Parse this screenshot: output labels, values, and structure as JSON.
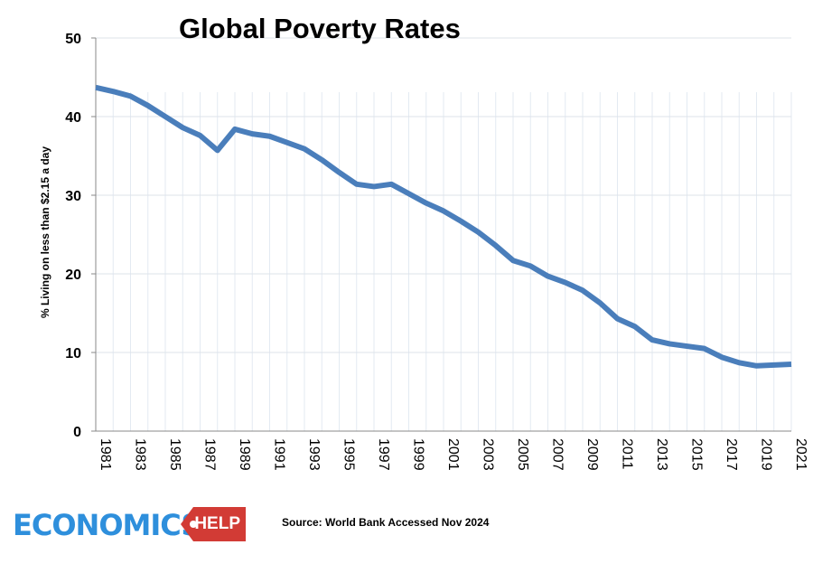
{
  "chart_data": {
    "type": "line",
    "title": "Global Poverty Rates",
    "xlabel": "",
    "ylabel": "% Living on less than $2.15 a day",
    "ylim": [
      0,
      50
    ],
    "yticks": [
      0,
      10,
      20,
      30,
      40,
      50
    ],
    "xlim": [
      1981,
      2021
    ],
    "xtick_labels": [
      "1981",
      "1983",
      "1985",
      "1987",
      "1989",
      "1991",
      "1993",
      "1995",
      "1997",
      "1999",
      "2001",
      "2003",
      "2005",
      "2007",
      "2009",
      "2011",
      "2013",
      "2015",
      "2017",
      "2019",
      "2021"
    ],
    "grid": true,
    "x": [
      1981,
      1982,
      1983,
      1984,
      1985,
      1986,
      1987,
      1988,
      1989,
      1990,
      1991,
      1992,
      1993,
      1994,
      1995,
      1996,
      1997,
      1998,
      1999,
      2000,
      2001,
      2002,
      2003,
      2004,
      2005,
      2006,
      2007,
      2008,
      2009,
      2010,
      2011,
      2012,
      2013,
      2014,
      2015,
      2016,
      2017,
      2018,
      2019,
      2020,
      2021
    ],
    "values": [
      43.7,
      43.2,
      42.6,
      41.4,
      40.0,
      38.6,
      37.6,
      35.7,
      38.4,
      37.8,
      37.5,
      36.7,
      35.9,
      34.5,
      32.9,
      31.4,
      31.1,
      31.4,
      30.2,
      29.0,
      28.0,
      26.7,
      25.3,
      23.6,
      21.7,
      21.0,
      19.7,
      18.9,
      17.9,
      16.3,
      14.3,
      13.3,
      11.6,
      11.1,
      10.8,
      10.5,
      9.4,
      8.7,
      8.3,
      8.4,
      8.5
    ],
    "line_color": "#4a7ebb"
  },
  "source": "Source: World Bank Accessed Nov 2024",
  "logo": {
    "text": "ECONOMICS",
    "tag": "HELP"
  }
}
